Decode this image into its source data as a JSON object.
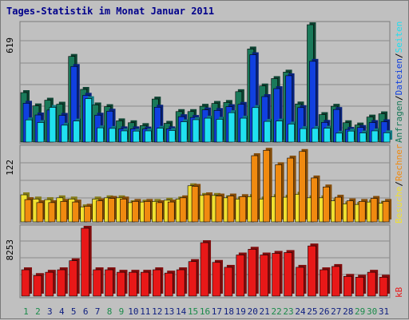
{
  "title": "Tages-Statistik im Monat Januar 2011",
  "colors": {
    "anfragen": "#1a7a5a",
    "dateien": "#1040e0",
    "seiten": "#20e0f0",
    "besuche": "#f0e030",
    "rechner": "#f08a10",
    "kb": "#e81818",
    "weekend_label": "#1a8a4a",
    "weekday_label": "#102080",
    "title": "#00008b"
  },
  "chart_data": [
    {
      "type": "bar",
      "panel": "top",
      "ymax_label": "619",
      "ylim": [
        0,
        619
      ],
      "categories": [
        "1",
        "2",
        "3",
        "4",
        "5",
        "6",
        "7",
        "8",
        "9",
        "10",
        "11",
        "12",
        "13",
        "14",
        "15",
        "16",
        "17",
        "18",
        "19",
        "20",
        "21",
        "22",
        "23",
        "24",
        "25",
        "26",
        "27",
        "28",
        "29",
        "30",
        "31"
      ],
      "series": [
        {
          "name": "Anfragen",
          "values": [
            261,
            191,
            221,
            200,
            452,
            278,
            196,
            187,
            112,
            102,
            87,
            227,
            99,
            161,
            161,
            189,
            204,
            209,
            266,
            491,
            296,
            335,
            369,
            201,
            619,
            145,
            189,
            102,
            90,
            132,
            149
          ]
        },
        {
          "name": "Dateien",
          "values": [
            205,
            143,
            169,
            141,
            399,
            247,
            142,
            163,
            70,
            70,
            69,
            184,
            70,
            134,
            130,
            170,
            167,
            187,
            199,
            461,
            240,
            282,
            350,
            182,
            426,
            104,
            172,
            67,
            77,
            103,
            107
          ]
        },
        {
          "name": "Seiten",
          "values": [
            117,
            103,
            183,
            89,
            111,
            229,
            75,
            72,
            59,
            58,
            59,
            73,
            61,
            107,
            118,
            126,
            120,
            155,
            126,
            182,
            109,
            111,
            95,
            71,
            72,
            73,
            47,
            58,
            48,
            59,
            49
          ]
        }
      ]
    },
    {
      "type": "bar",
      "panel": "middle",
      "ymax_label": "122",
      "ylim": [
        0,
        122
      ],
      "categories": [
        "1",
        "2",
        "3",
        "4",
        "5",
        "6",
        "7",
        "8",
        "9",
        "10",
        "11",
        "12",
        "13",
        "14",
        "15",
        "16",
        "17",
        "18",
        "19",
        "20",
        "21",
        "22",
        "23",
        "24",
        "25",
        "26",
        "27",
        "28",
        "29",
        "30",
        "31"
      ],
      "series": [
        {
          "name": "Besuche",
          "values": [
            45,
            38,
            37,
            40,
            38,
            25,
            38,
            40,
            40,
            32,
            33,
            34,
            36,
            38,
            60,
            44,
            44,
            40,
            38,
            42,
            38,
            42,
            41,
            46,
            40,
            40,
            35,
            30,
            29,
            33,
            31
          ]
        },
        {
          "name": "Rechner",
          "values": [
            37,
            32,
            32,
            34,
            33,
            26,
            35,
            39,
            38,
            34,
            34,
            32,
            33,
            40,
            59,
            45,
            43,
            43,
            42,
            110,
            119,
            95,
            106,
            117,
            73,
            58,
            41,
            35,
            34,
            39,
            34
          ]
        }
      ]
    },
    {
      "type": "bar",
      "panel": "bottom",
      "ymax_label": "8253",
      "ylim": [
        0,
        8253
      ],
      "categories": [
        "1",
        "2",
        "3",
        "4",
        "5",
        "6",
        "7",
        "8",
        "9",
        "10",
        "11",
        "12",
        "13",
        "14",
        "15",
        "16",
        "17",
        "18",
        "19",
        "20",
        "21",
        "22",
        "23",
        "24",
        "25",
        "26",
        "27",
        "28",
        "29",
        "30",
        "31"
      ],
      "series": [
        {
          "name": "KB",
          "values": [
            3200,
            2500,
            2900,
            3200,
            4300,
            8253,
            3200,
            3200,
            2900,
            2900,
            2900,
            3200,
            2800,
            3200,
            4200,
            6500,
            4100,
            3500,
            5000,
            5700,
            5000,
            5200,
            5300,
            3500,
            6100,
            3200,
            3600,
            2400,
            2300,
            2900,
            2300
          ]
        }
      ]
    }
  ],
  "legend": {
    "top": [
      "Anfragen",
      "Dateien",
      "Seiten"
    ],
    "middle": [
      "Besuche",
      "Rechner"
    ],
    "bottom": [
      "kB"
    ]
  }
}
